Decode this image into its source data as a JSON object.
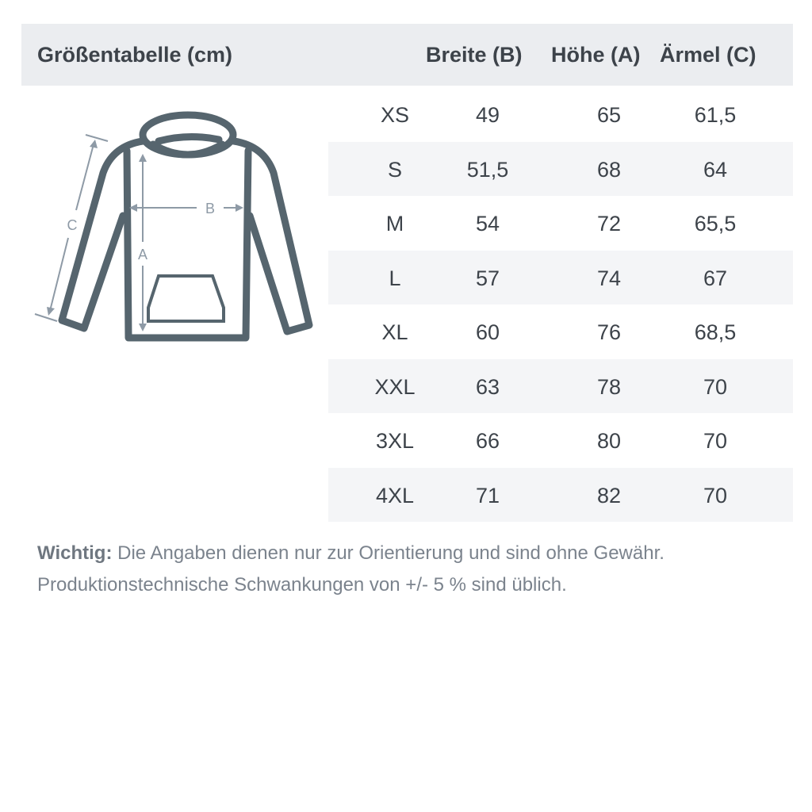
{
  "header": {
    "title": "Größentabelle (cm)",
    "columns": [
      "Breite (B)",
      "Höhe (A)",
      "Ärmel (C)"
    ]
  },
  "diagram": {
    "labels": {
      "a": "A",
      "b": "B",
      "c": "C"
    }
  },
  "rows": [
    {
      "size": "XS",
      "b": "49",
      "a": "65",
      "c": "61,5"
    },
    {
      "size": "S",
      "b": "51,5",
      "a": "68",
      "c": "64"
    },
    {
      "size": "M",
      "b": "54",
      "a": "72",
      "c": "65,5"
    },
    {
      "size": "L",
      "b": "57",
      "a": "74",
      "c": "67"
    },
    {
      "size": "XL",
      "b": "60",
      "a": "76",
      "c": "68,5"
    },
    {
      "size": "XXL",
      "b": "63",
      "a": "78",
      "c": "70"
    },
    {
      "size": "3XL",
      "b": "66",
      "a": "80",
      "c": "70"
    },
    {
      "size": "4XL",
      "b": "71",
      "a": "82",
      "c": "70"
    }
  ],
  "note": {
    "strong": "Wichtig:",
    "line1": " Die Angaben dienen nur zur Orientierung und sind ohne Gewähr.",
    "line2": "Produktionstechnische Schwankungen von +/- 5 % sind üblich."
  },
  "colors": {
    "hoodie": "#56656e",
    "measure": "#8e9aa6",
    "header_bg": "#ebedf0",
    "stripe": "#f4f5f7"
  }
}
